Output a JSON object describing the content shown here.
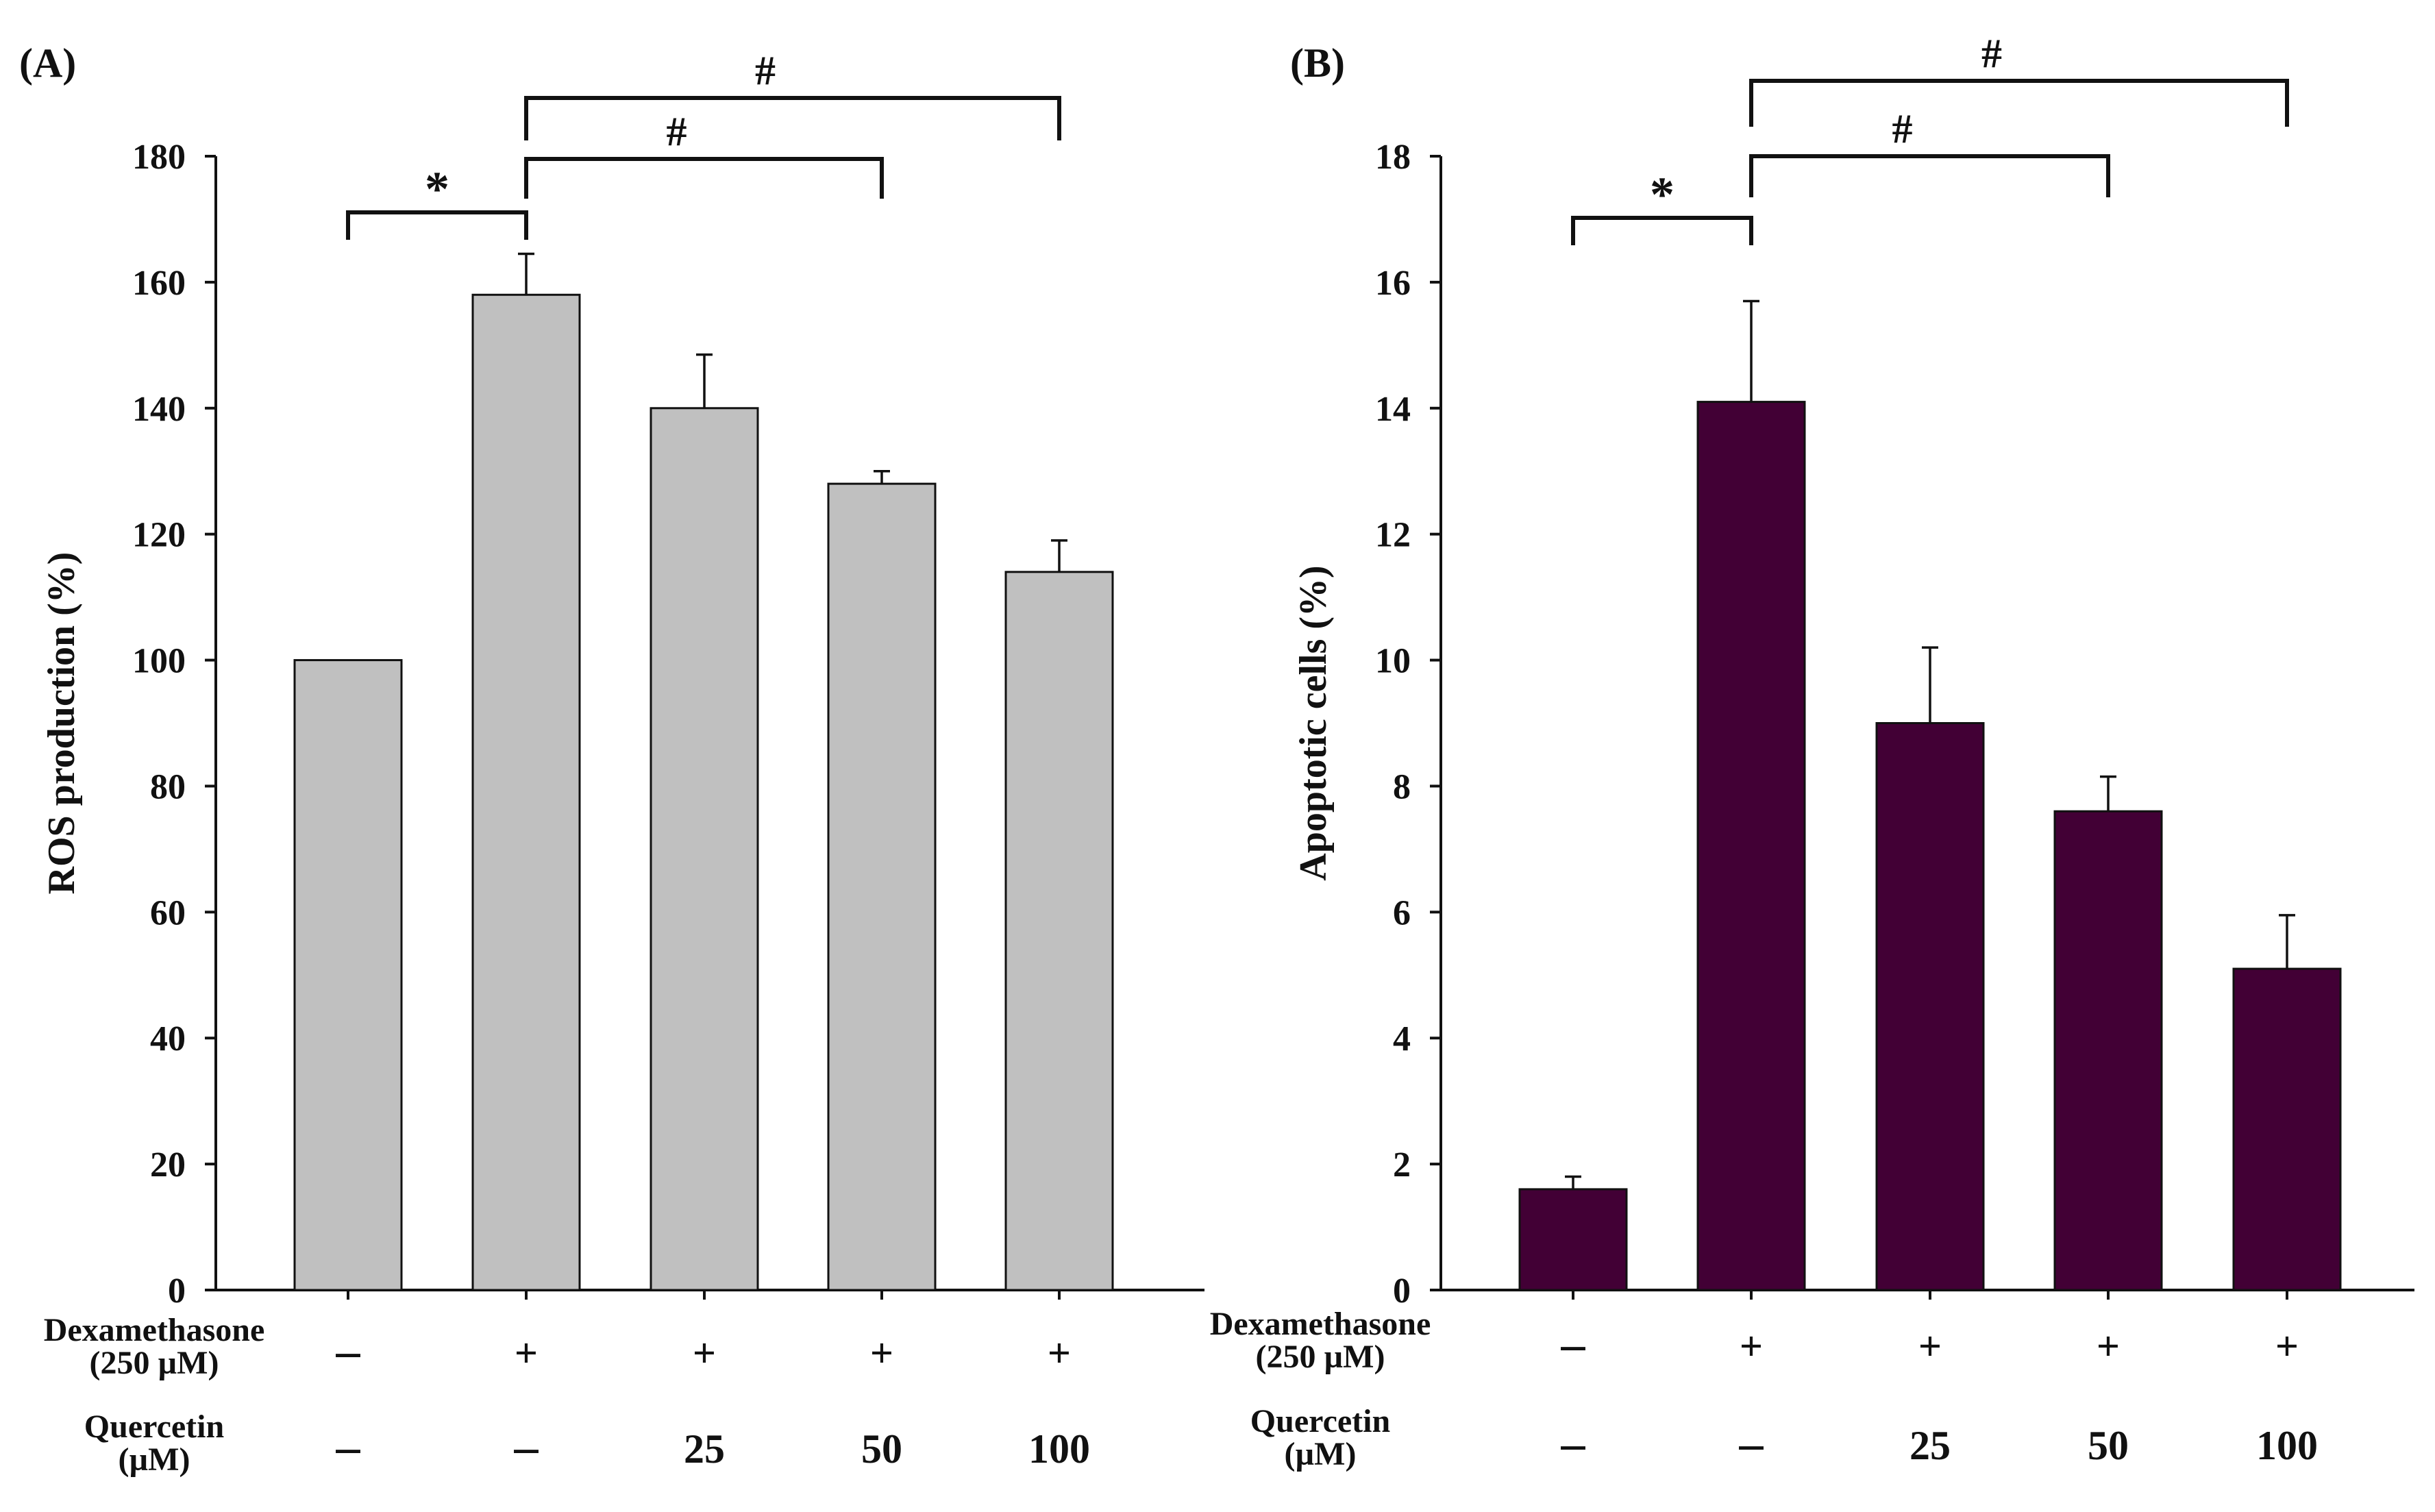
{
  "chart_data": [
    {
      "type": "bar",
      "panel_label": "(A)",
      "ylabel": "ROS production (%)",
      "ylim": [
        0,
        180
      ],
      "yticks": [
        0,
        20,
        40,
        60,
        80,
        100,
        120,
        140,
        160,
        180
      ],
      "values": [
        100,
        158,
        140,
        128,
        114
      ],
      "errors": [
        0,
        6.5,
        8.5,
        2,
        5
      ],
      "bar_color": "#c0c0c0",
      "treatment_rows": [
        {
          "label_line1": "Dexamethasone",
          "label_line2": "(250 µM)",
          "values": [
            "-",
            "+",
            "+",
            "+",
            "+"
          ]
        },
        {
          "label_line1": "Quercetin",
          "label_line2": "(µM)",
          "values": [
            "-",
            "-",
            "25",
            "50",
            "100"
          ]
        }
      ],
      "significance": [
        {
          "from": 0,
          "to": 1,
          "symbol": "*"
        },
        {
          "from": 1,
          "to": 3,
          "symbol": "#"
        },
        {
          "from": 1,
          "to": 4,
          "symbol": "#"
        }
      ]
    },
    {
      "type": "bar",
      "panel_label": "(B)",
      "ylabel": "Apoptotic cells (%)",
      "ylim": [
        0,
        18
      ],
      "yticks": [
        0,
        2,
        4,
        6,
        8,
        10,
        12,
        14,
        16,
        18
      ],
      "values": [
        1.6,
        14.1,
        9.0,
        7.6,
        5.1
      ],
      "errors": [
        0.2,
        1.6,
        1.2,
        0.55,
        0.85
      ],
      "bar_color": "#420035",
      "treatment_rows": [
        {
          "label_line1": "Dexamethasone",
          "label_line2": "(250 µM)",
          "values": [
            "-",
            "+",
            "+",
            "+",
            "+"
          ]
        },
        {
          "label_line1": "Quercetin",
          "label_line2": "(µM)",
          "values": [
            "-",
            "-",
            "25",
            "50",
            "100"
          ]
        }
      ],
      "significance": [
        {
          "from": 0,
          "to": 1,
          "symbol": "*"
        },
        {
          "from": 1,
          "to": 3,
          "symbol": "#"
        },
        {
          "from": 1,
          "to": 4,
          "symbol": "#"
        }
      ]
    }
  ]
}
